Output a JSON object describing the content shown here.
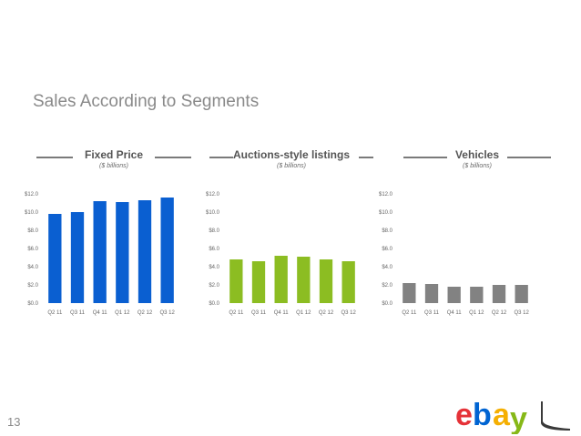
{
  "slide": {
    "title": "Sales According to Segments",
    "page_number": "13"
  },
  "logo": {
    "letters": [
      "e",
      "b",
      "a",
      "y"
    ],
    "colors": [
      "#e53238",
      "#0064d2",
      "#f5af02",
      "#86b817"
    ],
    "accent_mark": "#3a3a3a"
  },
  "chart_data": [
    {
      "type": "bar",
      "title": "Fixed Price",
      "subtitle": "($ billions)",
      "color": "#0a5fd1",
      "categories": [
        "Q2 11",
        "Q3 11",
        "Q4 11",
        "Q1 12",
        "Q2 12",
        "Q3 12"
      ],
      "values": [
        9.8,
        10.0,
        11.2,
        11.1,
        11.3,
        11.6
      ],
      "yticks": [
        "$0.0",
        "$2.0",
        "$4.0",
        "$6.0",
        "$8.0",
        "$10.0",
        "$12.0"
      ],
      "ylim": [
        0,
        12
      ],
      "grid": false
    },
    {
      "type": "bar",
      "title": "Auctions-style listings",
      "subtitle": "($ billions)",
      "color": "#8cbd22",
      "categories": [
        "Q2 11",
        "Q3 11",
        "Q4 11",
        "Q1 12",
        "Q2 12",
        "Q3 12"
      ],
      "values": [
        4.8,
        4.6,
        5.2,
        5.1,
        4.8,
        4.6
      ],
      "yticks": [
        "$0.0",
        "$2.0",
        "$4.0",
        "$6.0",
        "$8.0",
        "$10.0",
        "$12.0"
      ],
      "ylim": [
        0,
        12
      ],
      "grid": false
    },
    {
      "type": "bar",
      "title": "Vehicles",
      "subtitle": "($ billions)",
      "color": "#828282",
      "categories": [
        "Q2 11",
        "Q3 11",
        "Q4 11",
        "Q1 12",
        "Q2 12",
        "Q3 12"
      ],
      "values": [
        2.2,
        2.1,
        1.8,
        1.8,
        2.0,
        2.0
      ],
      "yticks": [
        "$0.0",
        "$2.0",
        "$4.0",
        "$6.0",
        "$8.0",
        "$10.0",
        "$12.0"
      ],
      "ylim": [
        0,
        12
      ],
      "grid": false
    }
  ]
}
